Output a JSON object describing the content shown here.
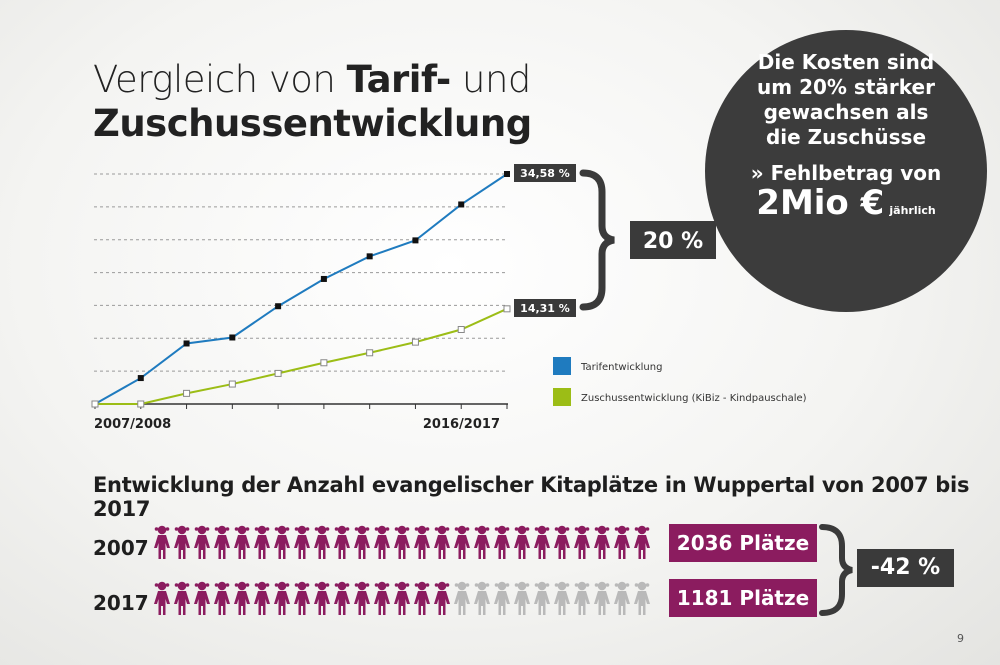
{
  "title": {
    "part1": "Vergleich von ",
    "part2": "Tarif-",
    "part3": " und",
    "line2": "Zuschussentwicklung"
  },
  "chart_data": {
    "type": "line",
    "x_start_label": "2007/2008",
    "x_end_label": "2016/2017",
    "series": [
      {
        "name": "Tarifentwicklung",
        "color": "#1f7bbf",
        "marker": "filled",
        "values": [
          0,
          3.9,
          9.1,
          10.0,
          14.7,
          18.8,
          22.2,
          24.6,
          30.0,
          34.58
        ]
      },
      {
        "name": "Zuschussentwicklung (KiBiz - Kindpauschale)",
        "color": "#9cbd16",
        "marker": "open",
        "values": [
          0,
          0,
          1.6,
          3.0,
          4.6,
          6.2,
          7.7,
          9.3,
          11.2,
          14.31
        ]
      }
    ],
    "ylim": [
      0,
      34.58
    ],
    "end_labels": [
      "34,58 %",
      "14,31 %"
    ],
    "difference_label": "20 %"
  },
  "legend": {
    "item1": "Tarifentwicklung",
    "item2": "Zuschussentwicklung (KiBiz - Kindpauschale)"
  },
  "callout": {
    "main": "Die Kosten sind um 20% stärker gewachsen als die Zuschüsse",
    "deficit": "» Fehlbetrag von",
    "amount_big": "2Mio €",
    "amount_small": "jährlich"
  },
  "kita": {
    "subtitle": "Entwicklung der Anzahl evangelischer Kitaplätze in Wuppertal von 2007 bis 2017",
    "row1": {
      "year": "2007",
      "count_label": "2036 Plätze",
      "icons_total": 25,
      "icons_filled": 25
    },
    "row2": {
      "year": "2017",
      "count_label": "1181 Plätze",
      "icons_total": 25,
      "icons_filled": 15
    },
    "change_label": "-42 %",
    "filled_color": "#8b1c5f",
    "empty_color": "#b9b9b9"
  },
  "page_number": "9"
}
